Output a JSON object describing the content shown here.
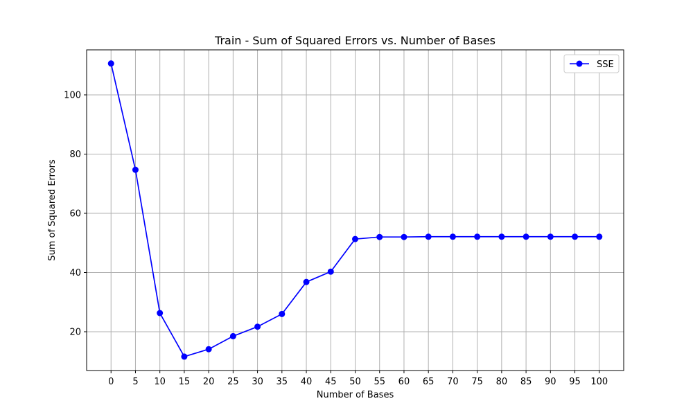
{
  "chart_data": {
    "type": "line",
    "title": "Train - Sum of Squared Errors vs. Number of Bases",
    "xlabel": "Number of Bases",
    "ylabel": "Sum of Squared Errors",
    "xlim": [
      -5,
      105
    ],
    "ylim": [
      6.9,
      115.2
    ],
    "x_ticks": [
      0,
      5,
      10,
      15,
      20,
      25,
      30,
      35,
      40,
      45,
      50,
      55,
      60,
      65,
      70,
      75,
      80,
      85,
      90,
      95,
      100
    ],
    "y_ticks": [
      20,
      40,
      60,
      80,
      100
    ],
    "grid": true,
    "legend_position": "top-right",
    "series": [
      {
        "name": "SSE",
        "color": "#0000ff",
        "marker": "circle",
        "x": [
          0,
          5,
          10,
          15,
          20,
          25,
          30,
          35,
          40,
          45,
          50,
          55,
          60,
          65,
          70,
          75,
          80,
          85,
          90,
          95,
          100
        ],
        "y": [
          110.6,
          74.7,
          26.3,
          11.6,
          14.1,
          18.5,
          21.7,
          26.0,
          36.8,
          40.3,
          51.3,
          52.0,
          52.0,
          52.1,
          52.1,
          52.1,
          52.1,
          52.1,
          52.1,
          52.1,
          52.1
        ]
      }
    ]
  }
}
